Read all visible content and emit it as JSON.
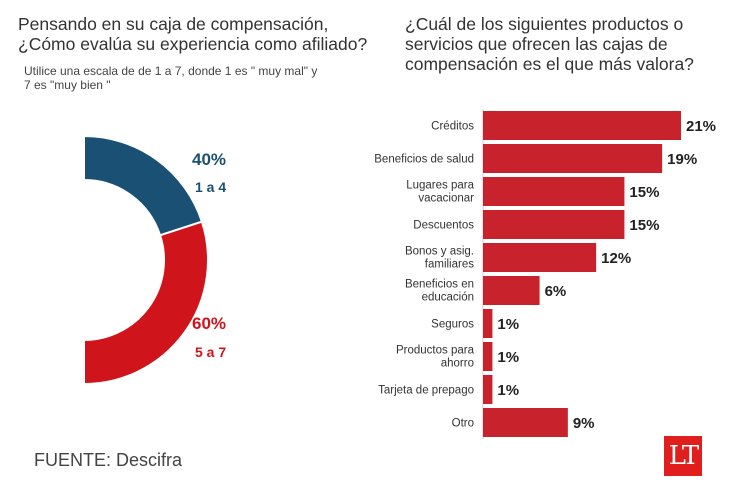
{
  "left": {
    "title": "Pensando en su caja de compensación, ¿Cómo evalúa su experiencia como afiliado?",
    "subtitle": "Utilice una escala de  de 1 a 7, donde 1 es \" muy mal\" y 7 es \"muy bien  \""
  },
  "right": {
    "title": "¿Cuál de los siguientes productos o servicios  que ofrecen las cajas de compensación es el que más valora?"
  },
  "source": "FUENTE: Descifra",
  "logo": "LT",
  "colors": {
    "blue": "#1a5073",
    "red": "#d0141c",
    "bar": "#c8232d",
    "text": "#333333"
  },
  "chart_data": [
    {
      "type": "pie",
      "title": "Pensando en su caja de compensación, ¿Cómo evalúa su experiencia como afiliado?",
      "slices": [
        {
          "label": "1 a 4",
          "value": 40,
          "value_label": "40%",
          "color": "#1a5073"
        },
        {
          "label": "5 a 7",
          "value": 60,
          "value_label": "60%",
          "color": "#d0141c"
        }
      ]
    },
    {
      "type": "bar",
      "orientation": "horizontal",
      "title": "¿Cuál de los siguientes productos o servicios  que ofrecen las cajas de compensación es el que más valora?",
      "categories": [
        [
          "Créditos"
        ],
        [
          "Beneficios de salud"
        ],
        [
          "Lugares para",
          "vacacionar"
        ],
        [
          "Descuentos"
        ],
        [
          "Bonos y asig.",
          "familiares"
        ],
        [
          "Beneficios en",
          "educación"
        ],
        [
          "Seguros"
        ],
        [
          "Productos para",
          "ahorro"
        ],
        [
          "Tarjeta de prepago"
        ],
        [
          "Otro"
        ]
      ],
      "values": [
        21,
        19,
        15,
        15,
        12,
        6,
        1,
        1,
        1,
        9
      ],
      "value_labels": [
        "21%",
        "19%",
        "15%",
        "15%",
        "12%",
        "6%",
        "1%",
        "1%",
        "1%",
        "9%"
      ],
      "grid": false
    }
  ]
}
